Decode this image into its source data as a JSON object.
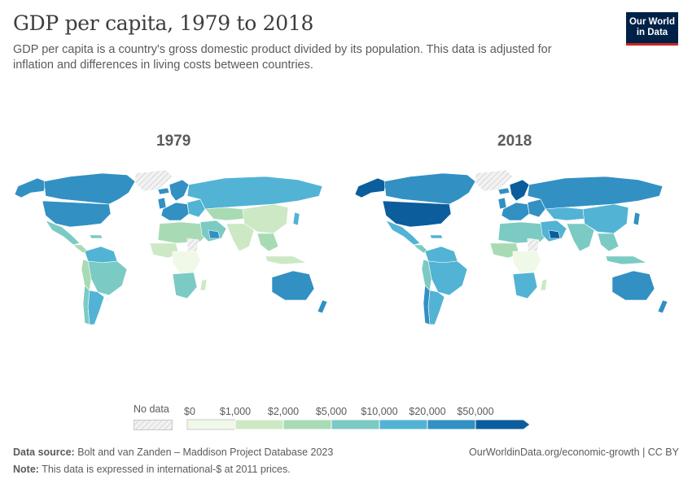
{
  "header": {
    "title": "GDP per capita, 1979 to 2018",
    "subtitle": "GDP per capita is a country's gross domestic product divided by its population. This data is adjusted for inflation and differences in living costs between countries.",
    "logo_line1": "Our World",
    "logo_line2": "in Data"
  },
  "maps": [
    {
      "year": "1979"
    },
    {
      "year": "2018"
    }
  ],
  "legend": {
    "no_data_label": "No data",
    "no_data_color": "#e8e8e8",
    "bins": [
      {
        "label": "$0",
        "color": "#f0f9e8"
      },
      {
        "label": "$1,000",
        "color": "#cde8c4"
      },
      {
        "label": "$2,000",
        "color": "#a8dbb4"
      },
      {
        "label": "$5,000",
        "color": "#7ccac4"
      },
      {
        "label": "$10,000",
        "color": "#52b3d5"
      },
      {
        "label": "$20,000",
        "color": "#3290c3"
      },
      {
        "label": "$50,000",
        "color": "#0c5d9c"
      }
    ]
  },
  "footer": {
    "source_label": "Data source:",
    "source_text": "Bolt and van Zanden – Maddison Project Database 2023",
    "note_label": "Note:",
    "note_text": "This data is expressed in international-$ at 2011 prices.",
    "url_text": "OurWorldinData.org/economic-growth | CC BY"
  }
}
